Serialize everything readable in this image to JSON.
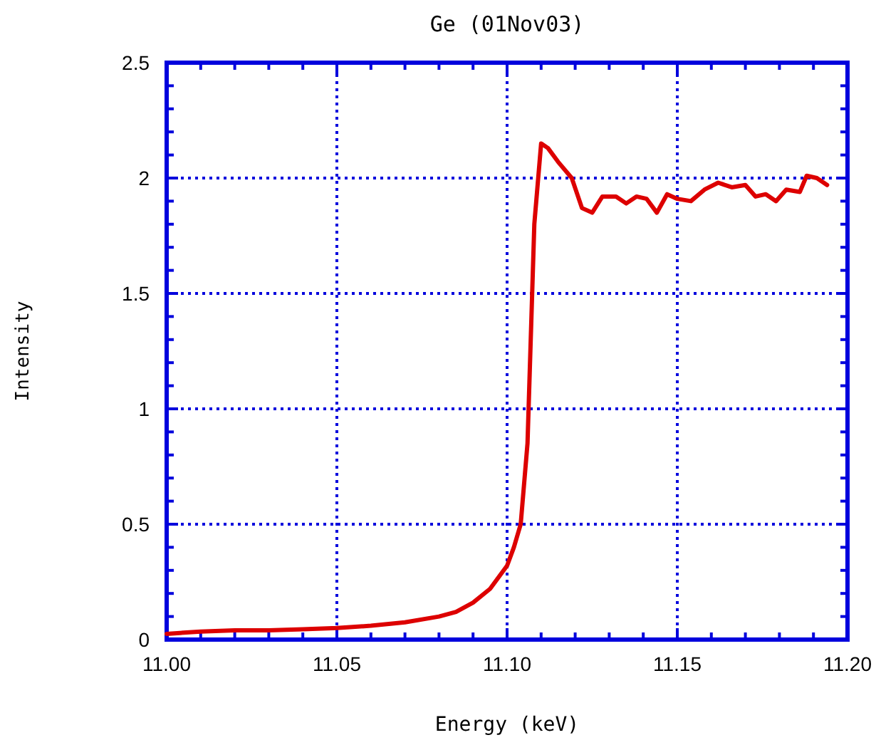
{
  "chart_data": {
    "type": "line",
    "title": "Ge  (01Nov03)",
    "xlabel": "Energy (keV)",
    "ylabel": "Intensity",
    "xlim": [
      11.0,
      11.2
    ],
    "ylim": [
      0,
      2.5
    ],
    "xticks": [
      {
        "value": 11.0,
        "label": "11.00"
      },
      {
        "value": 11.01,
        "label": null
      },
      {
        "value": 11.02,
        "label": null
      },
      {
        "value": 11.03,
        "label": null
      },
      {
        "value": 11.04,
        "label": null
      },
      {
        "value": 11.05,
        "label": "11.05"
      },
      {
        "value": 11.06,
        "label": null
      },
      {
        "value": 11.07,
        "label": null
      },
      {
        "value": 11.08,
        "label": null
      },
      {
        "value": 11.09,
        "label": null
      },
      {
        "value": 11.1,
        "label": "11.10"
      },
      {
        "value": 11.11,
        "label": null
      },
      {
        "value": 11.12,
        "label": null
      },
      {
        "value": 11.13,
        "label": null
      },
      {
        "value": 11.14,
        "label": null
      },
      {
        "value": 11.15,
        "label": "11.15"
      },
      {
        "value": 11.16,
        "label": null
      },
      {
        "value": 11.17,
        "label": null
      },
      {
        "value": 11.18,
        "label": null
      },
      {
        "value": 11.19,
        "label": null
      },
      {
        "value": 11.2,
        "label": "11.20"
      }
    ],
    "yticks": [
      0,
      {
        "value": 0.1,
        "label": null
      },
      {
        "value": 0.2,
        "label": null
      },
      {
        "value": 0.3,
        "label": null
      },
      {
        "value": 0.4,
        "label": null
      },
      0.5,
      {
        "value": 0.6,
        "label": null
      },
      {
        "value": 0.7,
        "label": null
      },
      {
        "value": 0.8,
        "label": null
      },
      {
        "value": 0.9,
        "label": null
      },
      1,
      {
        "value": 1.1,
        "label": null
      },
      {
        "value": 1.2,
        "label": null
      },
      {
        "value": 1.3,
        "label": null
      },
      {
        "value": 1.4,
        "label": null
      },
      1.5,
      {
        "value": 1.6,
        "label": null
      },
      {
        "value": 1.7,
        "label": null
      },
      {
        "value": 1.8,
        "label": null
      },
      {
        "value": 1.9,
        "label": null
      },
      2,
      {
        "value": 2.1,
        "label": null
      },
      {
        "value": 2.2,
        "label": null
      },
      {
        "value": 2.3,
        "label": null
      },
      {
        "value": 2.4,
        "label": null
      },
      2.5
    ],
    "grid": true,
    "marker": "none",
    "line_style": "solid",
    "series": [
      {
        "color": "#dd0000",
        "x": [
          11.0,
          11.005,
          11.01,
          11.02,
          11.03,
          11.04,
          11.05,
          11.06,
          11.07,
          11.08,
          11.085,
          11.09,
          11.095,
          11.1,
          11.102,
          11.104,
          11.106,
          11.108,
          11.11,
          11.112,
          11.115,
          11.119,
          11.122,
          11.125,
          11.128,
          11.132,
          11.135,
          11.138,
          11.141,
          11.144,
          11.147,
          11.15,
          11.154,
          11.158,
          11.162,
          11.166,
          11.17,
          11.173,
          11.176,
          11.179,
          11.182,
          11.186,
          11.188,
          11.191,
          11.194
        ],
        "values": [
          0.025,
          0.03,
          0.035,
          0.04,
          0.04,
          0.045,
          0.05,
          0.06,
          0.075,
          0.1,
          0.12,
          0.16,
          0.22,
          0.32,
          0.4,
          0.5,
          0.85,
          1.8,
          2.15,
          2.13,
          2.07,
          2.0,
          1.87,
          1.85,
          1.92,
          1.92,
          1.89,
          1.92,
          1.91,
          1.85,
          1.93,
          1.91,
          1.9,
          1.95,
          1.98,
          1.96,
          1.97,
          1.92,
          1.93,
          1.9,
          1.95,
          1.94,
          2.01,
          2.0,
          1.97
        ]
      }
    ]
  }
}
